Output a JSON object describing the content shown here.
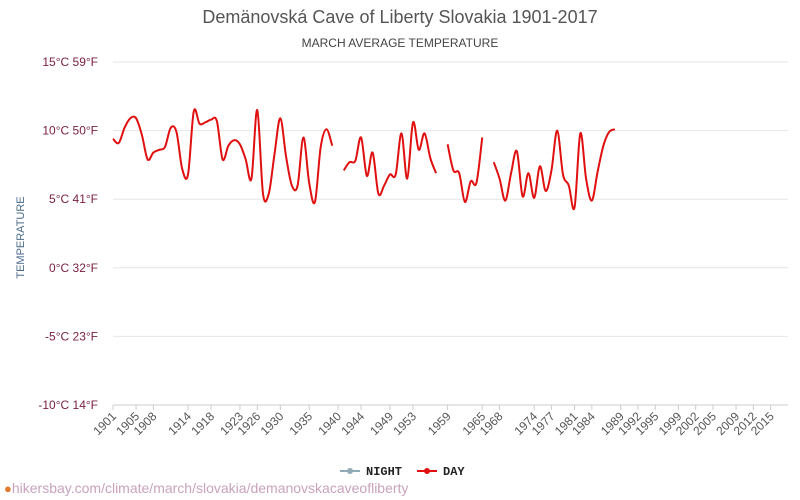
{
  "chart_data": {
    "type": "line",
    "title": "Demänovská Cave of Liberty Slovakia 1901-2017",
    "subtitle": "MARCH AVERAGE TEMPERATURE",
    "ylabel": "TEMPERATURE",
    "ylim": [
      -10,
      15
    ],
    "y_ticks": [
      {
        "value": 15,
        "label": "15°C 59°F"
      },
      {
        "value": 10,
        "label": "10°C 50°F"
      },
      {
        "value": 5,
        "label": "5°C 41°F"
      },
      {
        "value": 0,
        "label": "0°C 32°F"
      },
      {
        "value": -5,
        "label": "-5°C 23°F"
      },
      {
        "value": -10,
        "label": "-10°C 14°F"
      }
    ],
    "xlim": [
      1901,
      2018
    ],
    "x_ticks": [
      1901,
      1905,
      1908,
      1914,
      1918,
      1923,
      1926,
      1930,
      1935,
      1940,
      1944,
      1949,
      1953,
      1959,
      1965,
      1968,
      1974,
      1977,
      1981,
      1984,
      1989,
      1992,
      1995,
      1999,
      2002,
      2005,
      2009,
      2012,
      2015
    ],
    "legend": {
      "position": "bottom",
      "entries": [
        "NIGHT",
        "DAY"
      ]
    },
    "grid": true,
    "series": [
      {
        "name": "DAY",
        "color": "#e01010",
        "points": [
          [
            1901,
            9.4
          ],
          [
            1902,
            9.1
          ],
          [
            1903,
            10.2
          ],
          [
            1904,
            10.9
          ],
          [
            1905,
            10.9
          ],
          [
            1906,
            9.7
          ],
          [
            1907,
            7.9
          ],
          [
            1908,
            8.4
          ],
          [
            1909,
            8.6
          ],
          [
            1910,
            8.8
          ],
          [
            1911,
            10.2
          ],
          [
            1912,
            9.9
          ],
          [
            1913,
            7.2
          ],
          [
            1914,
            6.8
          ],
          [
            1915,
            11.4
          ],
          [
            1916,
            10.5
          ],
          [
            1917,
            10.6
          ],
          [
            1918,
            10.8
          ],
          [
            1919,
            10.7
          ],
          [
            1920,
            7.9
          ],
          [
            1921,
            8.9
          ],
          [
            1922,
            9.3
          ],
          [
            1923,
            9.0
          ],
          [
            1924,
            7.9
          ],
          [
            1925,
            6.5
          ],
          [
            1926,
            11.5
          ],
          [
            1927,
            5.4
          ],
          [
            1928,
            5.4
          ],
          [
            1929,
            8.3
          ],
          [
            1930,
            10.9
          ],
          [
            1931,
            8.1
          ],
          [
            1932,
            6.0
          ],
          [
            1933,
            6.0
          ],
          [
            1934,
            9.5
          ],
          [
            1935,
            6.2
          ],
          [
            1936,
            4.8
          ],
          [
            1937,
            8.8
          ],
          [
            1938,
            10.1
          ],
          [
            1939,
            8.9
          ],
          [
            1940,
            null
          ],
          [
            1941,
            7.1
          ],
          [
            1942,
            7.7
          ],
          [
            1943,
            7.8
          ],
          [
            1944,
            9.5
          ],
          [
            1945,
            6.7
          ],
          [
            1946,
            8.4
          ],
          [
            1947,
            5.4
          ],
          [
            1948,
            6.0
          ],
          [
            1949,
            6.8
          ],
          [
            1950,
            6.8
          ],
          [
            1951,
            9.8
          ],
          [
            1952,
            6.5
          ],
          [
            1953,
            10.6
          ],
          [
            1954,
            8.6
          ],
          [
            1955,
            9.8
          ],
          [
            1956,
            8.0
          ],
          [
            1957,
            6.9
          ],
          [
            1958,
            null
          ],
          [
            1959,
            9.0
          ],
          [
            1960,
            7.1
          ],
          [
            1961,
            6.9
          ],
          [
            1962,
            4.8
          ],
          [
            1963,
            6.3
          ],
          [
            1964,
            6.2
          ],
          [
            1965,
            9.5
          ],
          [
            1966,
            null
          ],
          [
            1967,
            7.7
          ],
          [
            1968,
            6.5
          ],
          [
            1969,
            4.9
          ],
          [
            1970,
            6.9
          ],
          [
            1971,
            8.5
          ],
          [
            1972,
            5.2
          ],
          [
            1973,
            6.9
          ],
          [
            1974,
            5.1
          ],
          [
            1975,
            7.4
          ],
          [
            1976,
            5.6
          ],
          [
            1977,
            7.1
          ],
          [
            1978,
            10.0
          ],
          [
            1979,
            6.8
          ],
          [
            1980,
            6.0
          ],
          [
            1981,
            4.4
          ],
          [
            1982,
            9.8
          ],
          [
            1983,
            6.5
          ],
          [
            1984,
            4.9
          ],
          [
            1985,
            7.0
          ],
          [
            1986,
            8.9
          ],
          [
            1987,
            9.9
          ],
          [
            1988,
            10.1
          ],
          [
            1989,
            null
          ],
          [
            1990,
            null
          ],
          [
            1991,
            null
          ],
          [
            1992,
            null
          ],
          [
            1993,
            null
          ],
          [
            1994,
            null
          ],
          [
            1995,
            null
          ],
          [
            1996,
            null
          ],
          [
            1997,
            null
          ],
          [
            1998,
            null
          ],
          [
            1999,
            null
          ],
          [
            2000,
            null
          ],
          [
            2001,
            null
          ],
          [
            2002,
            null
          ],
          [
            2003,
            null
          ],
          [
            2004,
            null
          ],
          [
            2005,
            null
          ],
          [
            2006,
            null
          ],
          [
            2007,
            null
          ],
          [
            2008,
            null
          ],
          [
            2009,
            null
          ],
          [
            2010,
            null
          ],
          [
            2011,
            null
          ],
          [
            2012,
            null
          ],
          [
            2013,
            null
          ],
          [
            2014,
            null
          ],
          [
            2015,
            null
          ],
          [
            2016,
            null
          ],
          [
            2017,
            null
          ]
        ]
      },
      {
        "name": "NIGHT",
        "color": "#90abb5",
        "points": [
          [
            1901,
            null
          ],
          [
            1902,
            null
          ],
          [
            1903,
            null
          ],
          [
            1904,
            null
          ],
          [
            1905,
            null
          ],
          [
            1906,
            null
          ],
          [
            1907,
            null
          ],
          [
            1908,
            null
          ],
          [
            1909,
            null
          ],
          [
            1910,
            null
          ],
          [
            1911,
            null
          ],
          [
            1912,
            null
          ],
          [
            1913,
            null
          ],
          [
            1914,
            null
          ],
          [
            1915,
            null
          ],
          [
            1916,
            null
          ],
          [
            1917,
            null
          ],
          [
            1918,
            null
          ],
          [
            1919,
            null
          ],
          [
            1920,
            null
          ],
          [
            1921,
            null
          ],
          [
            1922,
            null
          ],
          [
            1923,
            null
          ],
          [
            1924,
            null
          ],
          [
            1925,
            null
          ],
          [
            1926,
            null
          ],
          [
            1927,
            null
          ],
          [
            1928,
            null
          ],
          [
            1929,
            null
          ],
          [
            1930,
            null
          ],
          [
            1931,
            null
          ],
          [
            1932,
            null
          ],
          [
            1933,
            null
          ],
          [
            1934,
            null
          ],
          [
            1935,
            null
          ],
          [
            1936,
            null
          ],
          [
            1937,
            null
          ],
          [
            1938,
            null
          ],
          [
            1939,
            null
          ],
          [
            1940,
            null
          ],
          [
            1941,
            null
          ],
          [
            1942,
            null
          ],
          [
            1943,
            null
          ],
          [
            1944,
            null
          ],
          [
            1945,
            null
          ],
          [
            1946,
            null
          ],
          [
            1947,
            null
          ],
          [
            1948,
            null
          ],
          [
            1949,
            null
          ],
          [
            1950,
            null
          ],
          [
            1951,
            null
          ],
          [
            1952,
            null
          ],
          [
            1953,
            null
          ],
          [
            1954,
            null
          ],
          [
            1955,
            null
          ],
          [
            1956,
            null
          ],
          [
            1957,
            null
          ],
          [
            1958,
            null
          ],
          [
            1959,
            null
          ],
          [
            1960,
            null
          ],
          [
            1961,
            null
          ],
          [
            1962,
            null
          ],
          [
            1963,
            null
          ],
          [
            1964,
            null
          ],
          [
            1965,
            null
          ],
          [
            1966,
            null
          ],
          [
            1967,
            null
          ],
          [
            1968,
            null
          ],
          [
            1969,
            null
          ],
          [
            1970,
            null
          ],
          [
            1971,
            null
          ],
          [
            1972,
            null
          ],
          [
            1973,
            null
          ],
          [
            1974,
            null
          ],
          [
            1975,
            null
          ],
          [
            1976,
            null
          ],
          [
            1977,
            null
          ],
          [
            1978,
            null
          ],
          [
            1979,
            null
          ],
          [
            1980,
            null
          ],
          [
            1981,
            null
          ],
          [
            1982,
            null
          ],
          [
            1983,
            null
          ],
          [
            1984,
            null
          ],
          [
            1985,
            null
          ],
          [
            1986,
            null
          ],
          [
            1987,
            null
          ],
          [
            1988,
            null
          ],
          [
            1989,
            null
          ],
          [
            1990,
            null
          ],
          [
            1991,
            null
          ],
          [
            1992,
            null
          ],
          [
            1993,
            null
          ],
          [
            1994,
            null
          ],
          [
            1995,
            null
          ],
          [
            1996,
            null
          ],
          [
            1997,
            null
          ],
          [
            1998,
            null
          ],
          [
            1999,
            null
          ],
          [
            2000,
            null
          ],
          [
            2001,
            null
          ],
          [
            2002,
            null
          ],
          [
            2003,
            null
          ],
          [
            2004,
            null
          ],
          [
            2005,
            null
          ],
          [
            2006,
            null
          ],
          [
            2007,
            null
          ],
          [
            2008,
            null
          ],
          [
            2009,
            null
          ],
          [
            2010,
            null
          ],
          [
            2011,
            null
          ],
          [
            2012,
            null
          ],
          [
            2013,
            null
          ],
          [
            2014,
            null
          ],
          [
            2015,
            null
          ],
          [
            2016,
            null
          ],
          [
            2017,
            null
          ]
        ]
      }
    ]
  },
  "footer": {
    "text": "hikersbay.com/climate/march/slovakia/demanovskacaveofliberty"
  }
}
